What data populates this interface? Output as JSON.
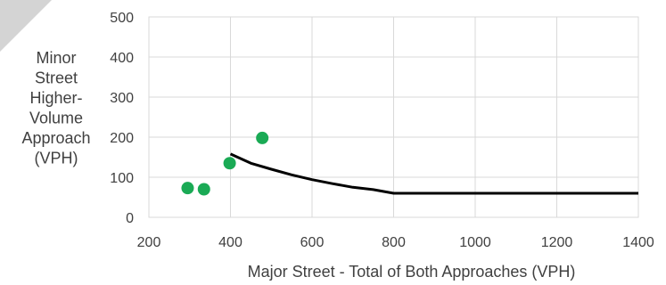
{
  "chart_data": {
    "type": "scatter",
    "xlabel": "Major Street - Total of Both Approaches (VPH)",
    "ylabel_lines": [
      "Minor",
      "Street",
      "Higher-",
      "Volume",
      "Approach",
      "(VPH)"
    ],
    "xlim": [
      200,
      1400
    ],
    "ylim": [
      0,
      500
    ],
    "x_ticks": [
      200,
      400,
      600,
      800,
      1000,
      1200,
      1400
    ],
    "y_ticks": [
      0,
      100,
      200,
      300,
      400,
      500
    ],
    "grid": true,
    "points": [
      {
        "x": 295,
        "y": 73
      },
      {
        "x": 335,
        "y": 70
      },
      {
        "x": 398,
        "y": 135
      },
      {
        "x": 478,
        "y": 198
      }
    ],
    "threshold_curve": [
      {
        "x": 400,
        "y": 158
      },
      {
        "x": 450,
        "y": 135
      },
      {
        "x": 500,
        "y": 120
      },
      {
        "x": 550,
        "y": 106
      },
      {
        "x": 600,
        "y": 94
      },
      {
        "x": 650,
        "y": 84
      },
      {
        "x": 700,
        "y": 75
      },
      {
        "x": 750,
        "y": 69
      },
      {
        "x": 800,
        "y": 60
      },
      {
        "x": 1400,
        "y": 60
      }
    ],
    "point_color": "#1aaa55",
    "line_color": "#000000"
  }
}
